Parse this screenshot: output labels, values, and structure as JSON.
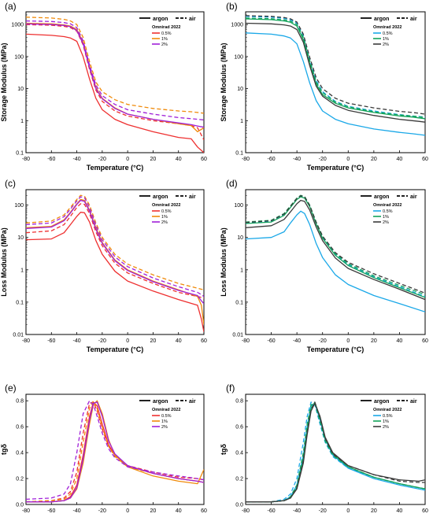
{
  "x_tick_labels": [
    "-80",
    "-60",
    "-40",
    "-20",
    "0",
    "20",
    "40",
    "60"
  ],
  "legend": {
    "argon_label": "argon",
    "air_label": "air",
    "group_title": "Omnirad 2022",
    "concentrations": [
      "0.5%",
      "1%",
      "2%"
    ]
  },
  "colors": {
    "left_0_5": "#ee3030",
    "left_1": "#f08a0a",
    "left_2": "#a020d8",
    "right_0_5": "#1aa8e8",
    "right_1": "#12a35a",
    "right_2": "#3a3a3a"
  },
  "chart_data": [
    {
      "panel": "(a)",
      "type": "line",
      "y_scale": "log",
      "xlabel": "Temperature (°C)",
      "ylabel": "Storage Modulus (MPa)",
      "xlim": [
        -80,
        60
      ],
      "ylim": [
        0.1,
        2500
      ],
      "y_tick_labels": [
        "0.1",
        "1",
        "10",
        "100",
        "1000"
      ],
      "x": [
        -80,
        -60,
        -50,
        -45,
        -40,
        -35,
        -30,
        -25,
        -20,
        -10,
        0,
        20,
        40,
        50,
        55,
        60
      ],
      "series": [
        {
          "name": "0.5%",
          "atmosphere": "argon",
          "color_key": "left_0_5",
          "values": [
            500,
            460,
            420,
            380,
            300,
            100,
            20,
            5,
            2.2,
            1.1,
            0.75,
            0.45,
            0.3,
            0.27,
            0.15,
            0.1
          ]
        },
        {
          "name": "0.5%",
          "atmosphere": "air",
          "color_key": "left_0_5",
          "values": [
            1000,
            950,
            880,
            800,
            620,
            230,
            40,
            9,
            4,
            2,
            1.4,
            1,
            0.8,
            0.7,
            0.6,
            0.25
          ]
        },
        {
          "name": "1%",
          "atmosphere": "argon",
          "color_key": "left_1",
          "values": [
            1100,
            1050,
            980,
            900,
            700,
            280,
            50,
            11,
            5,
            2.5,
            1.6,
            1.1,
            0.8,
            0.7,
            0.45,
            0.6
          ]
        },
        {
          "name": "1%",
          "atmosphere": "air",
          "color_key": "left_1",
          "values": [
            1700,
            1600,
            1450,
            1300,
            1000,
            400,
            70,
            16,
            8,
            4.5,
            3.2,
            2.4,
            2,
            1.9,
            1.8,
            1.7
          ]
        },
        {
          "name": "2%",
          "atmosphere": "argon",
          "color_key": "left_2",
          "values": [
            1050,
            1000,
            940,
            860,
            650,
            250,
            45,
            10,
            4.8,
            2.4,
            1.6,
            1.1,
            0.85,
            0.75,
            0.68,
            0.62
          ]
        },
        {
          "name": "2%",
          "atmosphere": "air",
          "color_key": "left_2",
          "values": [
            1300,
            1250,
            1150,
            1050,
            800,
            310,
            55,
            13,
            6,
            3.2,
            2.2,
            1.6,
            1.25,
            1.15,
            1.1,
            1.05
          ]
        }
      ]
    },
    {
      "panel": "(b)",
      "type": "line",
      "y_scale": "log",
      "xlabel": "Temperature (°C)",
      "ylabel": "Storage Modulus (MPa)",
      "xlim": [
        -80,
        60
      ],
      "ylim": [
        0.1,
        2500
      ],
      "y_tick_labels": [
        "0.1",
        "1",
        "10",
        "100",
        "1000"
      ],
      "x": [
        -80,
        -60,
        -50,
        -45,
        -40,
        -35,
        -30,
        -25,
        -20,
        -10,
        0,
        20,
        40,
        50,
        55,
        60
      ],
      "series": [
        {
          "name": "0.5%",
          "atmosphere": "argon",
          "color_key": "right_0_5",
          "values": [
            550,
            500,
            440,
            380,
            250,
            70,
            15,
            4.2,
            2,
            1.1,
            0.8,
            0.55,
            0.43,
            0.39,
            0.37,
            0.35
          ]
        },
        {
          "name": "0.5%",
          "atmosphere": "air",
          "color_key": "right_0_5",
          "values": [
            1800,
            1700,
            1550,
            1400,
            1100,
            450,
            80,
            18,
            8,
            4,
            2.8,
            2,
            1.55,
            1.4,
            1.35,
            1.3
          ]
        },
        {
          "name": "1%",
          "atmosphere": "argon",
          "color_key": "right_1",
          "values": [
            1500,
            1420,
            1300,
            1180,
            900,
            340,
            60,
            14,
            6.5,
            3.5,
            2.5,
            1.8,
            1.4,
            1.3,
            1.22,
            1.15
          ]
        },
        {
          "name": "1%",
          "atmosphere": "air",
          "color_key": "right_1",
          "values": [
            1600,
            1520,
            1400,
            1280,
            1000,
            400,
            75,
            16,
            7.5,
            3.8,
            2.7,
            1.9,
            1.5,
            1.4,
            1.32,
            1.25
          ]
        },
        {
          "name": "2%",
          "atmosphere": "argon",
          "color_key": "right_2",
          "values": [
            1100,
            1050,
            980,
            900,
            700,
            280,
            52,
            12,
            5.8,
            3,
            2.1,
            1.45,
            1.1,
            1,
            0.95,
            0.9
          ]
        },
        {
          "name": "2%",
          "atmosphere": "air",
          "color_key": "right_2",
          "values": [
            1900,
            1800,
            1650,
            1500,
            1200,
            500,
            95,
            22,
            10,
            5,
            3.5,
            2.5,
            1.95,
            1.8,
            1.7,
            1.6
          ]
        }
      ]
    },
    {
      "panel": "(c)",
      "type": "line",
      "y_scale": "log",
      "xlabel": "Temperature (°C)",
      "ylabel": "Loss Modulus (MPa)",
      "xlim": [
        -80,
        60
      ],
      "ylim": [
        0.01,
        300
      ],
      "y_tick_labels": [
        "0.01",
        "0.1",
        "1",
        "10",
        "100"
      ],
      "x": [
        -80,
        -60,
        -50,
        -45,
        -40,
        -37,
        -34,
        -30,
        -25,
        -20,
        -10,
        0,
        20,
        40,
        55,
        58,
        60
      ],
      "series": [
        {
          "name": "0.5%",
          "atmosphere": "argon",
          "color_key": "left_0_5",
          "values": [
            8.5,
            9,
            14,
            25,
            45,
            60,
            58,
            30,
            8,
            3,
            0.9,
            0.45,
            0.22,
            0.12,
            0.08,
            0.03,
            0.012
          ]
        },
        {
          "name": "0.5%",
          "atmosphere": "air",
          "color_key": "left_0_5",
          "values": [
            14,
            16,
            25,
            45,
            85,
            110,
            105,
            55,
            15,
            5.5,
            1.6,
            0.8,
            0.38,
            0.2,
            0.15,
            0.14,
            0.13
          ]
        },
        {
          "name": "1%",
          "atmosphere": "argon",
          "color_key": "left_1",
          "values": [
            20,
            22,
            35,
            60,
            110,
            150,
            140,
            70,
            20,
            7,
            2,
            1,
            0.45,
            0.24,
            0.15,
            0.08,
            0.02
          ]
        },
        {
          "name": "1%",
          "atmosphere": "air",
          "color_key": "left_1",
          "values": [
            28,
            32,
            50,
            85,
            150,
            200,
            190,
            100,
            28,
            10,
            3,
            1.5,
            0.7,
            0.38,
            0.27,
            0.25,
            0.24
          ]
        },
        {
          "name": "2%",
          "atmosphere": "argon",
          "color_key": "left_2",
          "values": [
            19,
            21,
            33,
            57,
            105,
            140,
            130,
            65,
            18,
            6.5,
            1.9,
            0.95,
            0.43,
            0.23,
            0.16,
            0.11,
            0.09
          ]
        },
        {
          "name": "2%",
          "atmosphere": "air",
          "color_key": "left_2",
          "values": [
            25,
            28,
            44,
            75,
            135,
            180,
            170,
            85,
            24,
            8.5,
            2.5,
            1.25,
            0.56,
            0.3,
            0.2,
            0.17,
            0.15
          ]
        }
      ]
    },
    {
      "panel": "(d)",
      "type": "line",
      "y_scale": "log",
      "xlabel": "Temperature (°C)",
      "ylabel": "Loss Modulus (MPa)",
      "xlim": [
        -80,
        60
      ],
      "ylim": [
        0.01,
        300
      ],
      "y_tick_labels": [
        "0.01",
        "0.1",
        "1",
        "10",
        "100"
      ],
      "x": [
        -80,
        -60,
        -50,
        -45,
        -40,
        -37,
        -34,
        -30,
        -25,
        -20,
        -10,
        0,
        20,
        40,
        60
      ],
      "series": [
        {
          "name": "0.5%",
          "atmosphere": "argon",
          "color_key": "right_0_5",
          "values": [
            9,
            10,
            15,
            28,
            50,
            65,
            55,
            25,
            6.5,
            2.4,
            0.7,
            0.35,
            0.16,
            0.09,
            0.05
          ]
        },
        {
          "name": "0.5%",
          "atmosphere": "air",
          "color_key": "right_0_5",
          "values": [
            28,
            32,
            52,
            90,
            160,
            190,
            175,
            95,
            28,
            10,
            3,
            1.45,
            0.6,
            0.3,
            0.15
          ]
        },
        {
          "name": "1%",
          "atmosphere": "argon",
          "color_key": "right_1",
          "values": [
            27,
            30,
            48,
            85,
            150,
            180,
            165,
            90,
            26,
            9.5,
            2.8,
            1.35,
            0.57,
            0.28,
            0.14
          ]
        },
        {
          "name": "1%",
          "atmosphere": "air",
          "color_key": "right_1",
          "values": [
            30,
            34,
            55,
            95,
            165,
            200,
            185,
            100,
            30,
            11,
            3.2,
            1.55,
            0.65,
            0.33,
            0.17
          ]
        },
        {
          "name": "2%",
          "atmosphere": "argon",
          "color_key": "right_2",
          "values": [
            20,
            23,
            36,
            62,
            110,
            140,
            130,
            70,
            21,
            8,
            2.3,
            1.1,
            0.5,
            0.25,
            0.12
          ]
        },
        {
          "name": "2%",
          "atmosphere": "air",
          "color_key": "right_2",
          "values": [
            29,
            33,
            53,
            92,
            162,
            195,
            180,
            98,
            29,
            11,
            3.4,
            1.7,
            0.75,
            0.38,
            0.19
          ]
        }
      ]
    },
    {
      "panel": "(e)",
      "type": "line",
      "y_scale": "linear",
      "xlabel": "",
      "ylabel": "tgδ",
      "xlim": [
        -80,
        60
      ],
      "ylim": [
        0,
        0.85
      ],
      "y_tick_labels": [
        "0.0",
        "0.2",
        "0.4",
        "0.6",
        "0.8"
      ],
      "x": [
        -80,
        -60,
        -50,
        -45,
        -40,
        -35,
        -30,
        -27,
        -24,
        -20,
        -15,
        -10,
        0,
        20,
        40,
        55,
        60
      ],
      "series": [
        {
          "name": "0.5%",
          "atmosphere": "argon",
          "color_key": "left_0_5",
          "values": [
            0.02,
            0.02,
            0.03,
            0.06,
            0.15,
            0.38,
            0.68,
            0.79,
            0.76,
            0.62,
            0.46,
            0.38,
            0.3,
            0.24,
            0.2,
            0.18,
            0.17
          ]
        },
        {
          "name": "0.5%",
          "atmosphere": "air",
          "color_key": "left_0_5",
          "values": [
            0.02,
            0.03,
            0.05,
            0.1,
            0.25,
            0.55,
            0.78,
            0.79,
            0.72,
            0.58,
            0.45,
            0.38,
            0.3,
            0.25,
            0.21,
            0.2,
            0.19
          ]
        },
        {
          "name": "1%",
          "atmosphere": "argon",
          "color_key": "left_1",
          "values": [
            0.02,
            0.02,
            0.03,
            0.05,
            0.12,
            0.32,
            0.62,
            0.77,
            0.8,
            0.7,
            0.5,
            0.38,
            0.29,
            0.22,
            0.18,
            0.16,
            0.27
          ]
        },
        {
          "name": "1%",
          "atmosphere": "air",
          "color_key": "left_1",
          "values": [
            0.02,
            0.03,
            0.04,
            0.08,
            0.2,
            0.48,
            0.74,
            0.8,
            0.74,
            0.6,
            0.45,
            0.37,
            0.29,
            0.24,
            0.2,
            0.18,
            0.17
          ]
        },
        {
          "name": "2%",
          "atmosphere": "argon",
          "color_key": "left_2",
          "values": [
            0.02,
            0.02,
            0.03,
            0.05,
            0.13,
            0.35,
            0.65,
            0.78,
            0.79,
            0.68,
            0.49,
            0.39,
            0.3,
            0.24,
            0.2,
            0.18,
            0.17
          ]
        },
        {
          "name": "2%",
          "atmosphere": "air",
          "color_key": "left_2",
          "values": [
            0.04,
            0.05,
            0.08,
            0.16,
            0.4,
            0.7,
            0.8,
            0.77,
            0.68,
            0.55,
            0.43,
            0.36,
            0.29,
            0.25,
            0.22,
            0.2,
            0.19
          ]
        }
      ]
    },
    {
      "panel": "(f)",
      "type": "line",
      "y_scale": "linear",
      "xlabel": "",
      "ylabel": "tgδ",
      "xlim": [
        -80,
        60
      ],
      "ylim": [
        0,
        0.85
      ],
      "y_tick_labels": [
        "0.0",
        "0.2",
        "0.4",
        "0.6",
        "0.8"
      ],
      "x": [
        -80,
        -60,
        -50,
        -45,
        -40,
        -35,
        -32,
        -29,
        -26,
        -22,
        -18,
        -12,
        0,
        20,
        40,
        55,
        60
      ],
      "series": [
        {
          "name": "0.5%",
          "atmosphere": "argon",
          "color_key": "right_0_5",
          "values": [
            0.02,
            0.02,
            0.03,
            0.06,
            0.15,
            0.38,
            0.6,
            0.76,
            0.78,
            0.65,
            0.5,
            0.38,
            0.28,
            0.2,
            0.15,
            0.12,
            0.11
          ]
        },
        {
          "name": "0.5%",
          "atmosphere": "air",
          "color_key": "right_0_5",
          "values": [
            0.02,
            0.02,
            0.04,
            0.08,
            0.2,
            0.48,
            0.68,
            0.79,
            0.77,
            0.62,
            0.48,
            0.37,
            0.28,
            0.21,
            0.16,
            0.13,
            0.12
          ]
        },
        {
          "name": "1%",
          "atmosphere": "argon",
          "color_key": "right_1",
          "values": [
            0.02,
            0.02,
            0.03,
            0.05,
            0.13,
            0.35,
            0.57,
            0.74,
            0.79,
            0.67,
            0.51,
            0.39,
            0.29,
            0.21,
            0.16,
            0.13,
            0.12
          ]
        },
        {
          "name": "1%",
          "atmosphere": "air",
          "color_key": "right_1",
          "values": [
            0.02,
            0.02,
            0.03,
            0.06,
            0.15,
            0.4,
            0.62,
            0.77,
            0.78,
            0.64,
            0.49,
            0.38,
            0.29,
            0.21,
            0.16,
            0.13,
            0.12
          ]
        },
        {
          "name": "2%",
          "atmosphere": "argon",
          "color_key": "right_2",
          "values": [
            0.02,
            0.02,
            0.03,
            0.05,
            0.12,
            0.32,
            0.54,
            0.72,
            0.78,
            0.68,
            0.52,
            0.4,
            0.3,
            0.23,
            0.19,
            0.18,
            0.19
          ]
        },
        {
          "name": "2%",
          "atmosphere": "air",
          "color_key": "right_2",
          "values": [
            0.02,
            0.02,
            0.03,
            0.05,
            0.13,
            0.34,
            0.56,
            0.73,
            0.79,
            0.67,
            0.51,
            0.39,
            0.3,
            0.23,
            0.18,
            0.17,
            0.17
          ]
        }
      ]
    }
  ]
}
